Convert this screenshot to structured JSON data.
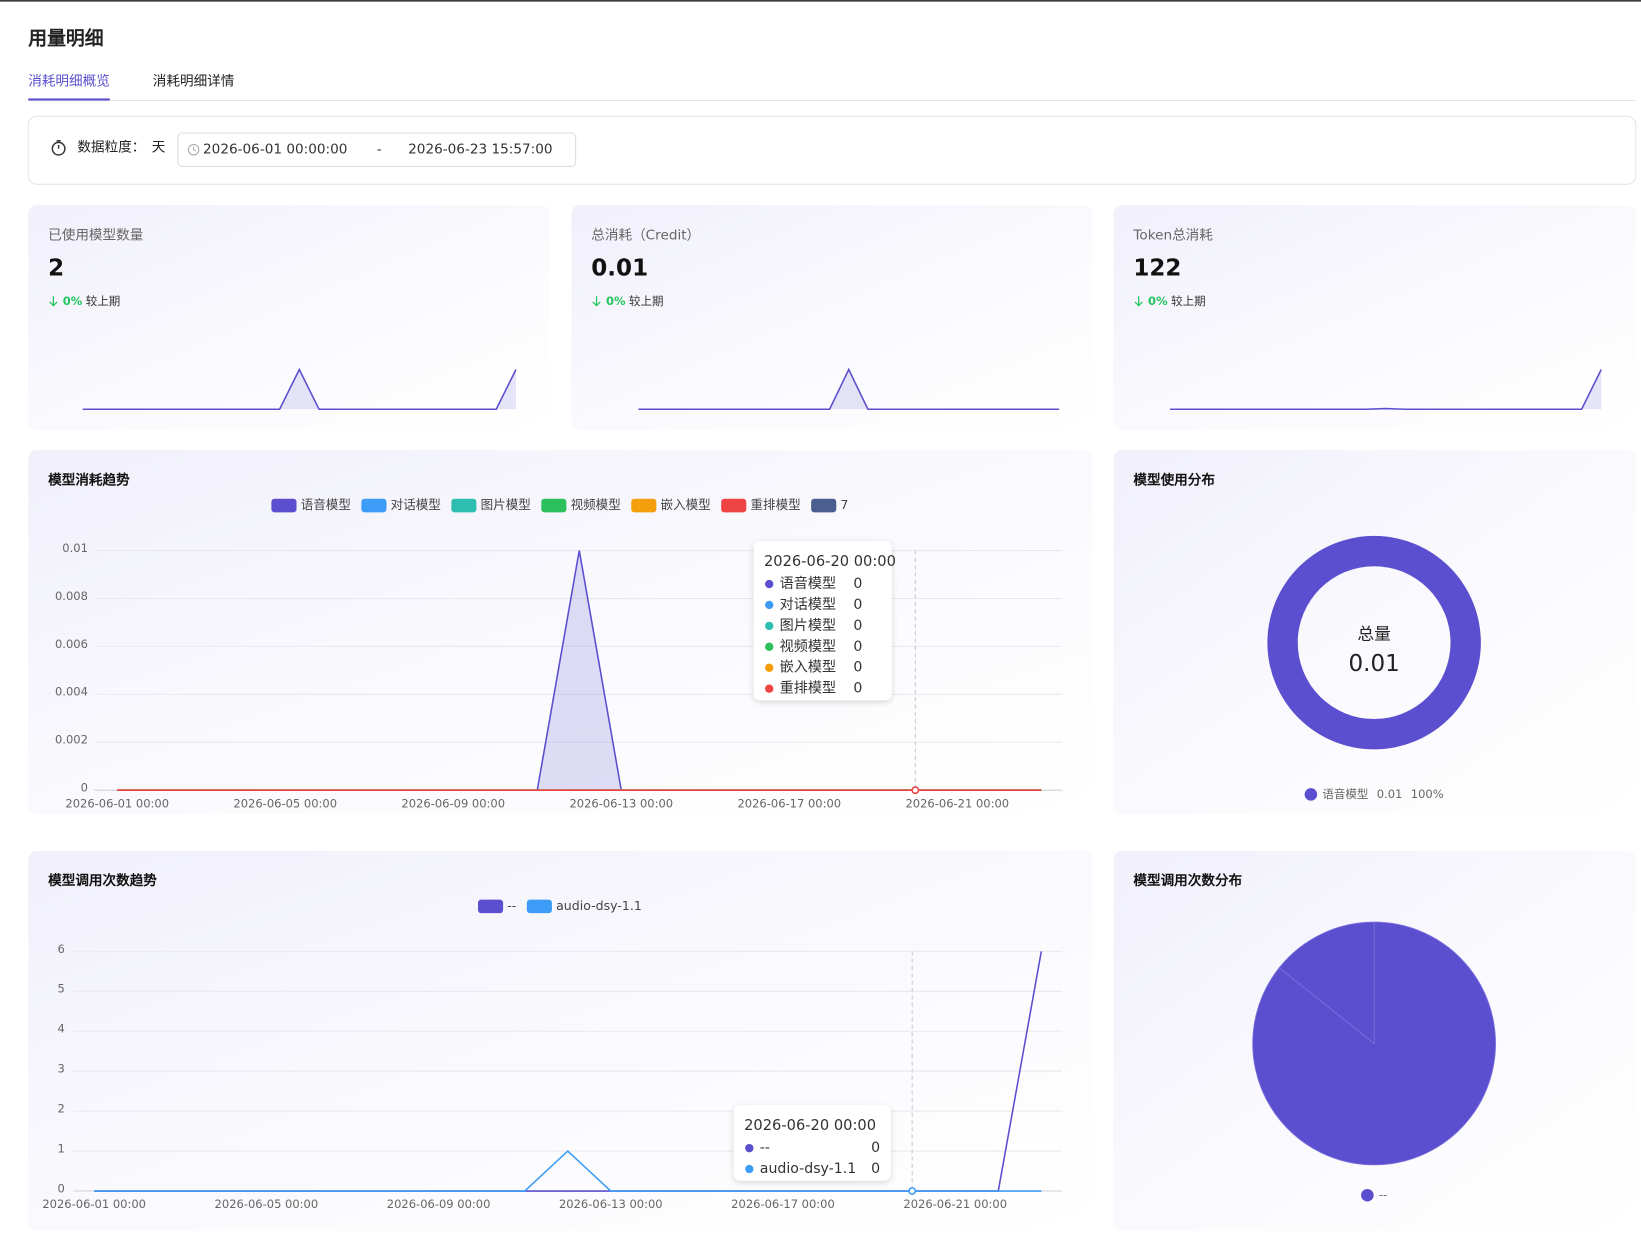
{
  "header": {
    "title": "用量明细"
  },
  "tabs": [
    {
      "label": "消耗明细概览",
      "active": true
    },
    {
      "label": "消耗明细详情",
      "active": false
    }
  ],
  "filter": {
    "label": "数据粒度：",
    "granularity": "天",
    "start": "2026-06-01 00:00:00",
    "separator": "-",
    "end": "2026-06-23 15:57:00"
  },
  "cards": [
    {
      "label": "已使用模型数量",
      "value": 2,
      "change": {
        "value": 0,
        "label": "0%"
      },
      "compare": "较上期",
      "color": "#5b4fcf",
      "sparkline": [
        0,
        0,
        0,
        0,
        0,
        0,
        0,
        0,
        0,
        0,
        0,
        1,
        0,
        0,
        0,
        0,
        0,
        0,
        0,
        0,
        0,
        0,
        1
      ]
    },
    {
      "label": "总消耗（Credit）",
      "value": 0.01,
      "change": {
        "value": 0,
        "label": "0%"
      },
      "compare": "较上期",
      "color": "#5b4fcf",
      "sparkline": [
        0,
        0,
        0,
        0,
        0,
        0,
        0,
        0,
        0,
        0,
        0,
        0.01,
        0,
        0,
        0,
        0,
        0,
        0,
        0,
        0,
        0,
        0,
        0
      ]
    },
    {
      "label": "Token总消耗",
      "value": 122,
      "change": {
        "value": 0,
        "label": "0%"
      },
      "compare": "较上期",
      "color": "#5b4fcf",
      "sparkline": [
        0,
        0,
        0,
        0,
        0,
        0,
        0,
        0,
        0,
        0,
        0,
        2,
        0,
        0,
        0,
        0,
        0,
        0,
        0,
        0,
        0,
        0,
        120
      ]
    }
  ],
  "chart_data": [
    {
      "type": "line",
      "title": "模型消耗趋势",
      "categories": [
        "2026-06-01 00:00",
        "2026-06-02 00:00",
        "2026-06-03 00:00",
        "2026-06-04 00:00",
        "2026-06-05 00:00",
        "2026-06-06 00:00",
        "2026-06-07 00:00",
        "2026-06-08 00:00",
        "2026-06-09 00:00",
        "2026-06-10 00:00",
        "2026-06-11 00:00",
        "2026-06-12 00:00",
        "2026-06-13 00:00",
        "2026-06-14 00:00",
        "2026-06-15 00:00",
        "2026-06-16 00:00",
        "2026-06-17 00:00",
        "2026-06-18 00:00",
        "2026-06-19 00:00",
        "2026-06-20 00:00",
        "2026-06-21 00:00",
        "2026-06-22 00:00",
        "2026-06-23 00:00"
      ],
      "xlabel_interval": 4,
      "hover": 19,
      "ylim": [
        0,
        0.01
      ],
      "yticks": [
        0,
        0.002,
        0.004,
        0.006,
        0.008,
        0.01
      ],
      "grid": true,
      "series": [
        {
          "name": "语音模型",
          "color": "#5b4fcf",
          "area": true,
          "values": [
            0,
            0,
            0,
            0,
            0,
            0,
            0,
            0,
            0,
            0,
            0,
            0.01,
            0,
            0,
            0,
            0,
            0,
            0,
            0,
            0,
            0,
            0,
            0
          ]
        },
        {
          "name": "对话模型",
          "color": "#3d9cf5",
          "values": [
            0,
            0,
            0,
            0,
            0,
            0,
            0,
            0,
            0,
            0,
            0,
            0,
            0,
            0,
            0,
            0,
            0,
            0,
            0,
            0,
            0,
            0,
            0
          ]
        },
        {
          "name": "图片模型",
          "color": "#2fbfb0",
          "values": [
            0,
            0,
            0,
            0,
            0,
            0,
            0,
            0,
            0,
            0,
            0,
            0,
            0,
            0,
            0,
            0,
            0,
            0,
            0,
            0,
            0,
            0,
            0
          ]
        },
        {
          "name": "视频模型",
          "color": "#2cbf5b",
          "values": [
            0,
            0,
            0,
            0,
            0,
            0,
            0,
            0,
            0,
            0,
            0,
            0,
            0,
            0,
            0,
            0,
            0,
            0,
            0,
            0,
            0,
            0,
            0
          ]
        },
        {
          "name": "嵌入模型",
          "color": "#f59e0b",
          "values": [
            0,
            0,
            0,
            0,
            0,
            0,
            0,
            0,
            0,
            0,
            0,
            0,
            0,
            0,
            0,
            0,
            0,
            0,
            0,
            0,
            0,
            0,
            0
          ]
        },
        {
          "name": "重排模型",
          "color": "#ef4444",
          "values": [
            0,
            0,
            0,
            0,
            0,
            0,
            0,
            0,
            0,
            0,
            0,
            0,
            0,
            0,
            0,
            0,
            0,
            0,
            0,
            0,
            0,
            0,
            0
          ]
        },
        {
          "name": "7",
          "color": "#4a5e8f",
          "values": [
            null,
            null,
            null,
            null,
            null,
            null,
            null,
            null,
            null,
            null,
            null,
            null,
            null,
            null,
            null,
            null,
            null,
            null,
            null,
            null,
            null,
            null,
            null
          ]
        }
      ]
    },
    {
      "type": "donut",
      "title": "模型使用分布",
      "center_label": "总量",
      "categories": [
        "语音模型"
      ],
      "values": [
        0.01
      ],
      "colors": [
        "#5b4fcf"
      ],
      "shares": [
        {
          "value": 100,
          "label": "100%"
        }
      ]
    },
    {
      "type": "line",
      "title": "模型调用次数趋势",
      "categories": [
        "2026-06-01 00:00",
        "2026-06-02 00:00",
        "2026-06-03 00:00",
        "2026-06-04 00:00",
        "2026-06-05 00:00",
        "2026-06-06 00:00",
        "2026-06-07 00:00",
        "2026-06-08 00:00",
        "2026-06-09 00:00",
        "2026-06-10 00:00",
        "2026-06-11 00:00",
        "2026-06-12 00:00",
        "2026-06-13 00:00",
        "2026-06-14 00:00",
        "2026-06-15 00:00",
        "2026-06-16 00:00",
        "2026-06-17 00:00",
        "2026-06-18 00:00",
        "2026-06-19 00:00",
        "2026-06-20 00:00",
        "2026-06-21 00:00",
        "2026-06-22 00:00",
        "2026-06-23 00:00"
      ],
      "xlabel_interval": 4,
      "hover": 19,
      "ylim": [
        0,
        6
      ],
      "yticks": [
        0,
        1,
        2,
        3,
        4,
        5,
        6
      ],
      "grid": true,
      "series": [
        {
          "name": "--",
          "color": "#5b4fcf",
          "values": [
            0,
            0,
            0,
            0,
            0,
            0,
            0,
            0,
            0,
            0,
            0,
            0,
            0,
            0,
            0,
            0,
            0,
            0,
            0,
            0,
            0,
            0,
            6
          ]
        },
        {
          "name": "audio-dsy-1.1",
          "color": "#3d9cf5",
          "values": [
            0,
            0,
            0,
            0,
            0,
            0,
            0,
            0,
            0,
            0,
            0,
            1,
            0,
            0,
            0,
            0,
            0,
            0,
            0,
            0,
            0,
            0,
            0
          ]
        }
      ]
    },
    {
      "type": "pie",
      "title": "模型调用次数分布",
      "categories": [
        "--",
        null
      ],
      "values": [
        6,
        1
      ],
      "colors": [
        "#5b4fcf",
        "#5b4fcf"
      ]
    }
  ]
}
